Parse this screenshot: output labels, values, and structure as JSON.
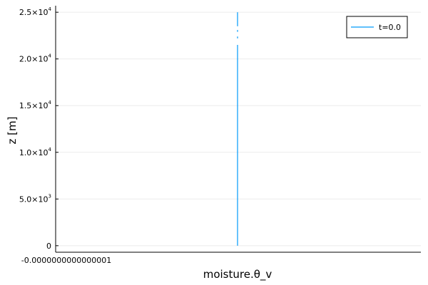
{
  "chart_data": {
    "type": "line",
    "title": "",
    "xlabel": "moisture.θ_v",
    "ylabel": "z [m]",
    "x_tick_labels": [
      "-0.0000000000000001"
    ],
    "y_ticks": [
      {
        "value": 0,
        "mantissa": "0",
        "exponent": ""
      },
      {
        "value": 5000,
        "mantissa": "5.0×10",
        "exponent": "3"
      },
      {
        "value": 10000,
        "mantissa": "1.0×10",
        "exponent": "4"
      },
      {
        "value": 15000,
        "mantissa": "1.5×10",
        "exponent": "4"
      },
      {
        "value": 20000,
        "mantissa": "2.0×10",
        "exponent": "4"
      },
      {
        "value": 25000,
        "mantissa": "2.5×10",
        "exponent": "4"
      }
    ],
    "ylim": [
      -700,
      25700
    ],
    "grid": true,
    "legend_position": "top-right",
    "series": [
      {
        "name": "t=0.0",
        "color": "#009AFA",
        "segments": [
          {
            "x": 0,
            "y": [
              0,
              21500
            ]
          },
          {
            "x": 0,
            "y": [
              22200,
              22400
            ]
          },
          {
            "x": 0,
            "y": [
              22900,
              23100
            ]
          },
          {
            "x": 0,
            "y": [
              23500,
              25000
            ]
          }
        ]
      }
    ]
  }
}
